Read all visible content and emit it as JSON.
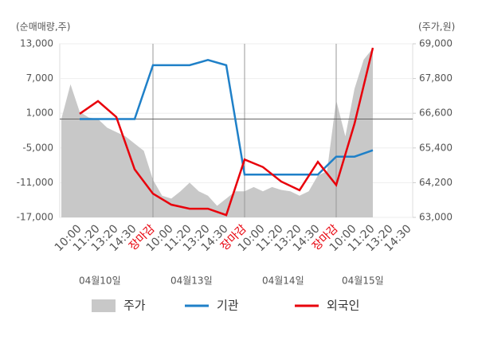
{
  "chart_data": {
    "type": "line",
    "ylabel": "(순매매량,주)",
    "y2label": "(주가,원)",
    "categories": [
      "10:00",
      "11:20",
      "13:20",
      "14:30",
      "장마감",
      "10:00",
      "11:20",
      "13:20",
      "14:30",
      "장마감",
      "10:00",
      "11:20",
      "13:20",
      "14:30",
      "장마감",
      "10:00",
      "11:20",
      "13:20",
      "14:30"
    ],
    "day_breaks": [
      4,
      9,
      14
    ],
    "break_label_color": "#e8000b",
    "dates": [
      "04월10일",
      "04월13일",
      "04월14일",
      "04월15일"
    ],
    "ylim": [
      -17000,
      13000
    ],
    "yticks": [
      {
        "value": -17000,
        "label": "-17,000"
      },
      {
        "value": -11000,
        "label": "-11,000"
      },
      {
        "value": -5000,
        "label": "-5,000"
      },
      {
        "value": 1000,
        "label": "1,000"
      },
      {
        "value": 7000,
        "label": "7,000"
      },
      {
        "value": 13000,
        "label": "13,000"
      }
    ],
    "y2lim": [
      63000,
      69000
    ],
    "y2ticks": [
      {
        "value": 63000,
        "label": "63,000"
      },
      {
        "value": 64200,
        "label": "64,200"
      },
      {
        "value": 65400,
        "label": "65,400"
      },
      {
        "value": 66600,
        "label": "66,600"
      },
      {
        "value": 67800,
        "label": "67,800"
      },
      {
        "value": 69000,
        "label": "69,000"
      }
    ],
    "series": [
      {
        "name": "주가",
        "type": "area",
        "axis": "y2",
        "color": "#c8c8c8",
        "x": [
          -1,
          -0.5,
          0,
          0.5,
          1,
          1.5,
          2,
          2.5,
          3,
          3.5,
          4,
          4.5,
          5,
          5.5,
          6,
          6.5,
          7,
          7.5,
          8,
          8.5,
          9,
          9.5,
          10,
          10.5,
          11,
          11.5,
          12,
          12.5,
          13,
          13.5,
          14,
          14.5,
          15,
          15.5,
          16
        ],
        "values": [
          66400,
          67600,
          66650,
          66450,
          66400,
          66100,
          65950,
          65800,
          65550,
          65300,
          64300,
          63750,
          63650,
          63900,
          64200,
          63900,
          63750,
          63400,
          63650,
          63900,
          63900,
          64050,
          63900,
          64050,
          63950,
          63900,
          63750,
          63900,
          64450,
          64600,
          67050,
          65800,
          67450,
          68450,
          68850
        ]
      },
      {
        "name": "기관",
        "type": "line",
        "color": "#1f80c8",
        "values": [
          0,
          0,
          0,
          0,
          9300,
          9300,
          9300,
          10200,
          9300,
          -9600,
          -9600,
          -9600,
          -9600,
          -9600,
          -6500,
          -6500,
          -5400,
          null,
          null
        ]
      },
      {
        "name": "외국인",
        "type": "line",
        "color": "#e8000b",
        "values": [
          900,
          3100,
          350,
          -8700,
          -12900,
          -14800,
          -15500,
          -15500,
          -16600,
          -7000,
          -8300,
          -10800,
          -12300,
          -7400,
          -11400,
          -800,
          12300,
          null,
          null
        ]
      }
    ]
  }
}
